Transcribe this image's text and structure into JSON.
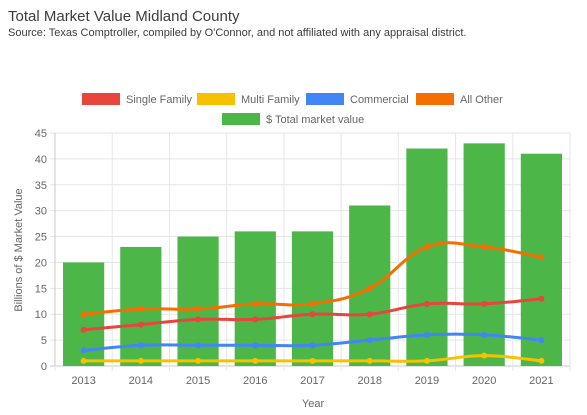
{
  "header": {
    "title": "Total Market Value Midland County",
    "subtitle": "Source: Texas Comptroller, compiled by O'Connor, and not affiliated with any appraisal district."
  },
  "chart_data": {
    "type": "bar",
    "categories": [
      "2013",
      "2014",
      "2015",
      "2016",
      "2017",
      "2018",
      "2019",
      "2020",
      "2021"
    ],
    "xlabel": "Year",
    "ylabel": "Billions of $ Market Value",
    "ylim": [
      0,
      45
    ],
    "yticks": [
      0,
      5,
      10,
      15,
      20,
      25,
      30,
      35,
      40,
      45
    ],
    "grid": true,
    "legend_position": "top",
    "bars": {
      "name": "$ Total market value",
      "color": "#4cb748",
      "values": [
        20,
        23,
        25,
        26,
        26,
        31,
        42,
        43,
        41
      ]
    },
    "series": [
      {
        "name": "Single Family",
        "type": "line",
        "color": "#e8453c",
        "values": [
          7,
          8,
          9,
          9,
          10,
          10,
          12,
          12,
          13
        ]
      },
      {
        "name": "Multi Family",
        "type": "line",
        "color": "#f7c100",
        "values": [
          1,
          1,
          1,
          1,
          1,
          1,
          1,
          2,
          1
        ]
      },
      {
        "name": "Commercial",
        "type": "line",
        "color": "#4285f4",
        "values": [
          3,
          4,
          4,
          4,
          4,
          5,
          6,
          6,
          5
        ]
      },
      {
        "name": "All Other",
        "type": "line",
        "color": "#f56f00",
        "values": [
          10,
          11,
          11,
          12,
          12,
          15,
          23,
          23,
          21
        ]
      }
    ]
  }
}
